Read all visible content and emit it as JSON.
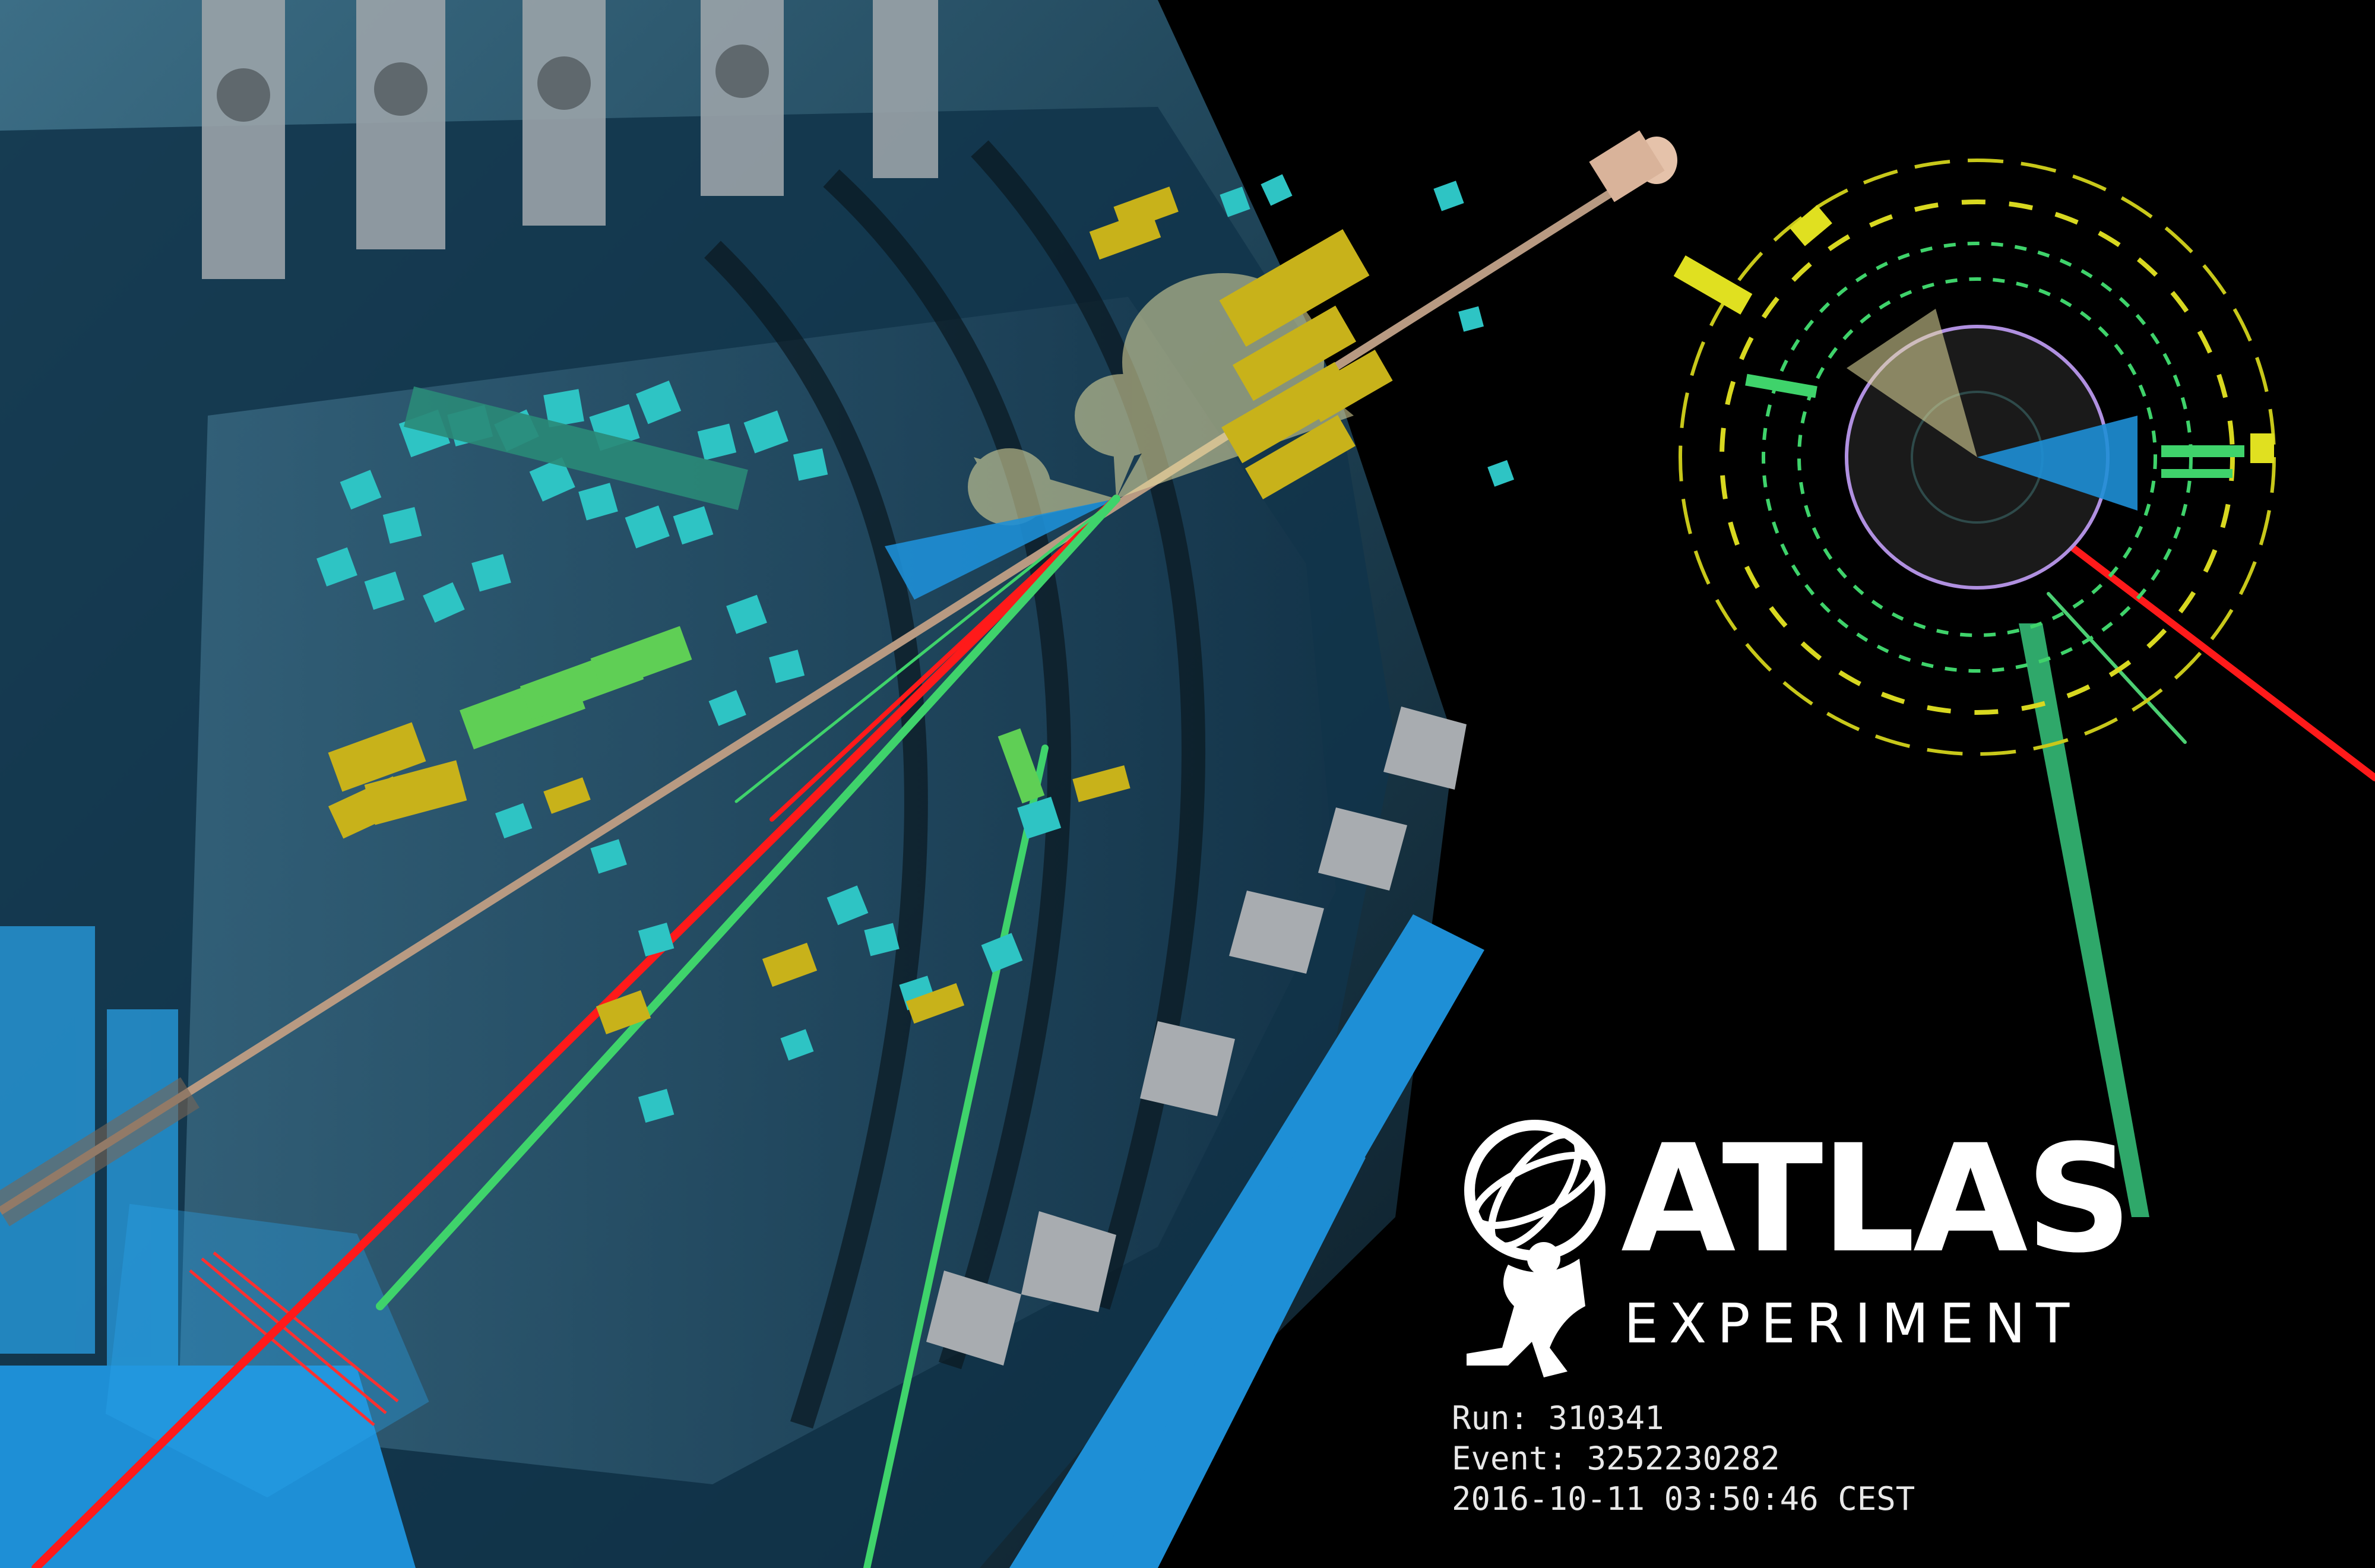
{
  "logo": {
    "title": "ATLAS",
    "subtitle": "EXPERIMENT"
  },
  "event_info": {
    "run": "Run: 310341",
    "event": "Event: 3252230282",
    "timestamp": "2016-10-11 03:50:46 CEST"
  },
  "colors": {
    "background": "#000000",
    "detector_blue": "#1e8fd6",
    "muon_red": "#ff1a1a",
    "track_green": "#3fd36b",
    "cell_cyan": "#2ec4c4",
    "cell_yellow": "#c8b21a",
    "beam_pipe": "#b89a82"
  }
}
